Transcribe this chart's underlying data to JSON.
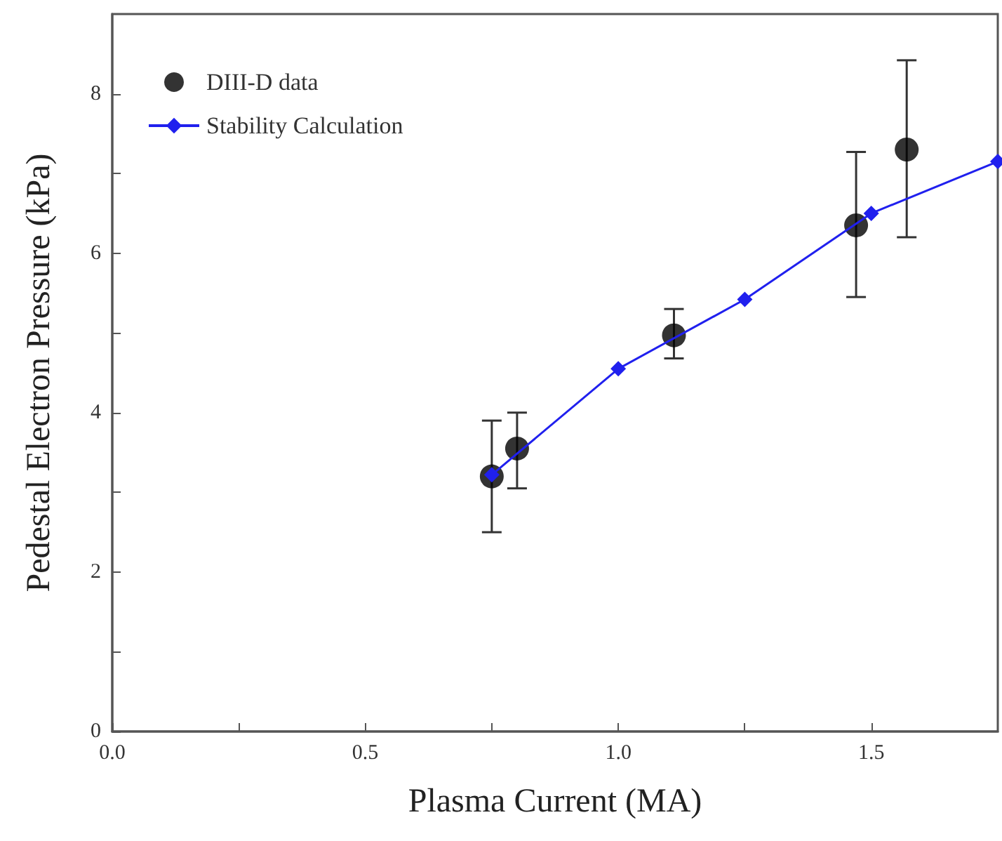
{
  "chart_data": {
    "type": "scatter",
    "xlabel": "Plasma Current (MA)",
    "ylabel": "Pedestal Electron Pressure (kPa)",
    "xlim": [
      0,
      1.75
    ],
    "xticks": [
      {
        "value": 0,
        "label": "0.0"
      },
      {
        "value": 0.25,
        "label": null
      },
      0.5,
      {
        "value": 0.75,
        "label": null
      },
      {
        "value": 1,
        "label": "1.0"
      },
      {
        "value": 1.25,
        "label": null
      },
      1.5
    ],
    "ylim": [
      0,
      9
    ],
    "yticks": [
      0,
      {
        "value": 1,
        "label": null
      },
      2,
      {
        "value": 3,
        "label": null
      },
      4,
      {
        "value": 5,
        "label": null
      },
      6,
      {
        "value": 7,
        "label": null
      },
      8
    ],
    "grid": false,
    "legend": "top left",
    "series": [
      {
        "name": "DIII-D data",
        "type": "scatter",
        "color": "#000000",
        "marker": "circle",
        "x": [
          0.75,
          0.8,
          1.11,
          1.47,
          1.57
        ],
        "values": [
          3.2,
          3.55,
          4.97,
          6.35,
          7.3
        ],
        "errors": [
          [
            2.5,
            3.9
          ],
          [
            3.05,
            4.0
          ],
          [
            4.68,
            5.3
          ],
          [
            5.45,
            7.27
          ],
          [
            6.2,
            8.42
          ]
        ]
      },
      {
        "name": "Stability Calculation",
        "type": "line",
        "color": "#2020ee",
        "marker": "diamond",
        "line_style": "solid",
        "x": [
          0.75,
          1.0,
          1.25,
          1.5,
          1.75
        ],
        "values": [
          3.22,
          4.55,
          5.42,
          6.5,
          7.15
        ]
      }
    ]
  }
}
